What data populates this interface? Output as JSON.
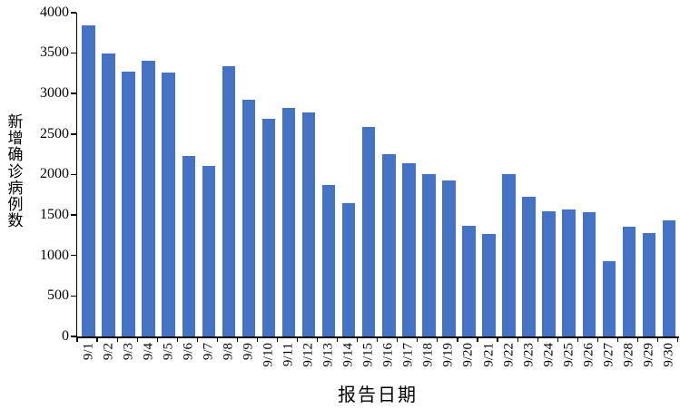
{
  "chart_data": {
    "type": "bar",
    "title": "",
    "xlabel": "报告日期",
    "ylabel": "新增确诊病例数",
    "categories": [
      "9/1",
      "9/2",
      "9/3",
      "9/4",
      "9/5",
      "9/6",
      "9/7",
      "9/8",
      "9/9",
      "9/10",
      "9/11",
      "9/12",
      "9/13",
      "9/14",
      "9/15",
      "9/16",
      "9/17",
      "9/18",
      "9/19",
      "9/20",
      "9/21",
      "9/22",
      "9/23",
      "9/24",
      "9/25",
      "9/26",
      "9/27",
      "9/28",
      "9/29",
      "9/30"
    ],
    "values": [
      3840,
      3490,
      3270,
      3400,
      3260,
      2230,
      2110,
      3340,
      2920,
      2690,
      2820,
      2770,
      1870,
      1650,
      2590,
      2250,
      2140,
      2000,
      1930,
      1370,
      1260,
      2010,
      1720,
      1550,
      1570,
      1530,
      930,
      1360,
      1280,
      1430
    ],
    "ylim": [
      0,
      4000
    ],
    "yticks": [
      0,
      500,
      1000,
      1500,
      2000,
      2500,
      3000,
      3500,
      4000
    ],
    "grid": false,
    "legend": null,
    "bar_color": "#4472C4",
    "axis_color": "#000000",
    "xlabel_rotation_deg": -90
  }
}
